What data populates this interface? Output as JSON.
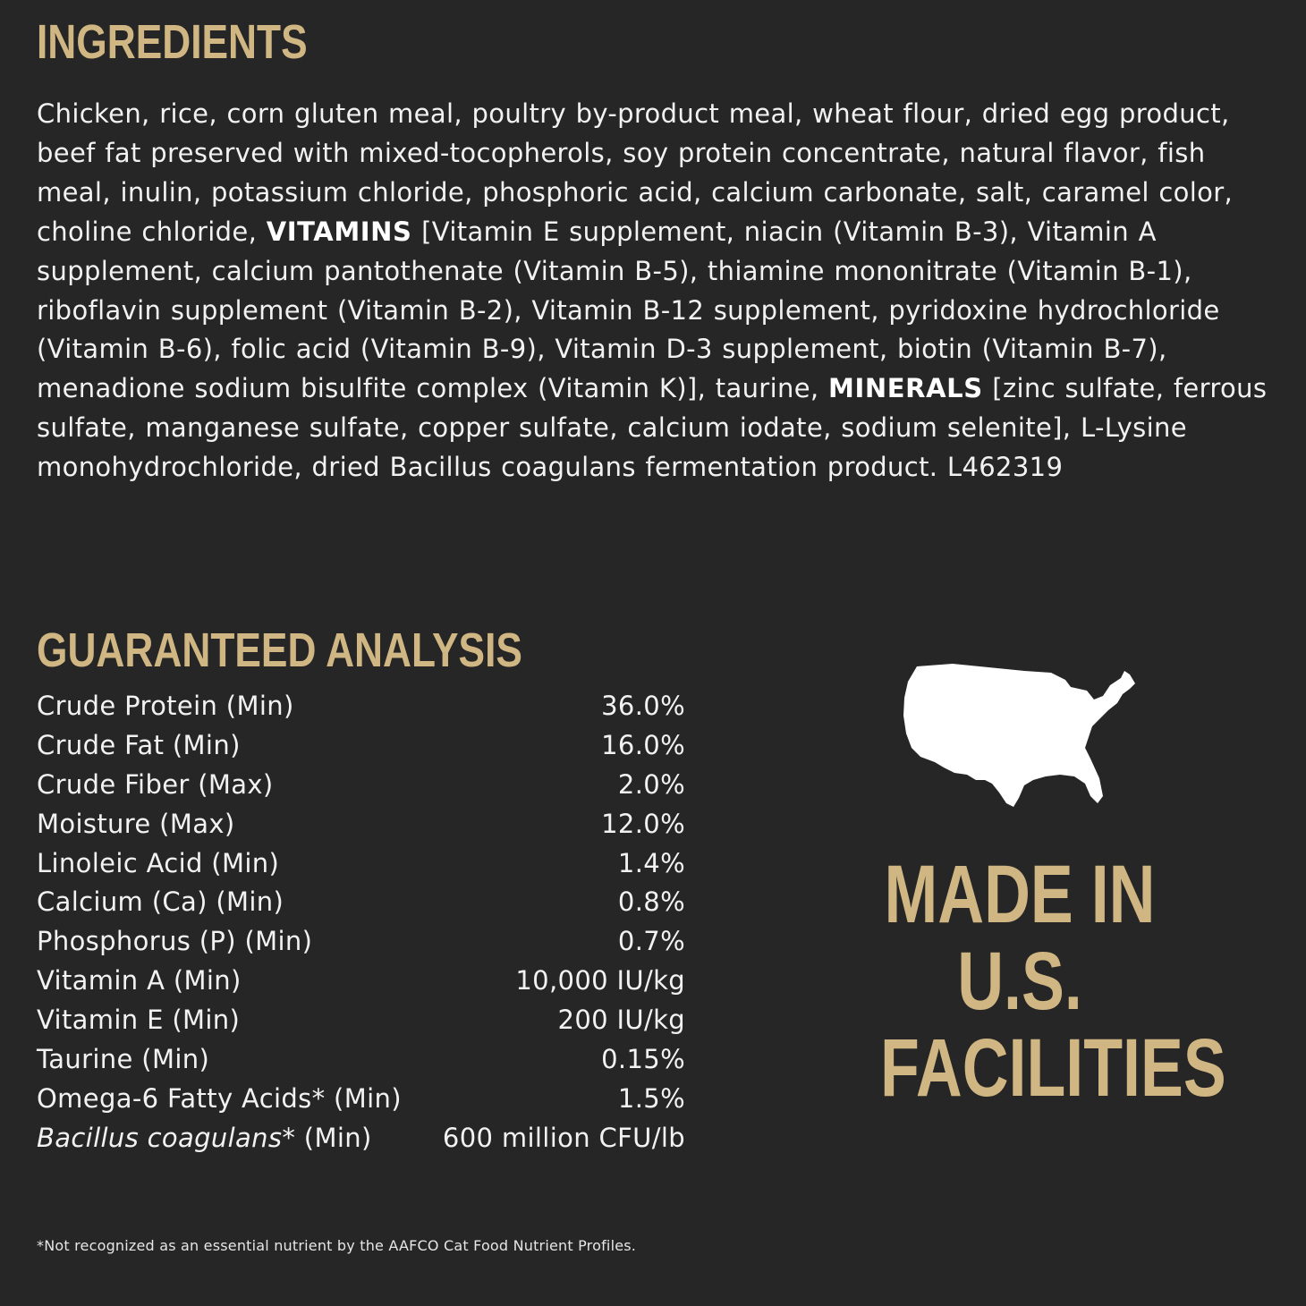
{
  "ingredients": {
    "title": "INGREDIENTS",
    "text_part1": "Chicken, rice, corn gluten meal, poultry by-product meal, wheat flour, dried egg product, beef fat preserved with mixed-tocopherols, soy protein concentrate, natural flavor, fish meal, inulin, potassium chloride, phosphoric acid, calcium carbonate, salt, caramel color, choline chloride, ",
    "vitamins_label": "VITAMINS",
    "text_part2": " [Vitamin E supplement, niacin (Vitamin B-3), Vitamin A supplement, calcium pantothenate (Vitamin B-5), thiamine mononitrate (Vitamin B-1), riboflavin supplement (Vitamin B-2), Vitamin B-12 supplement, pyridoxine hydrochloride (Vitamin B-6), folic acid (Vitamin B-9), Vitamin D-3 supplement, biotin (Vitamin B-7), menadione sodium bisulfite complex (Vitamin K)], taurine, ",
    "minerals_label": "MINERALS",
    "text_part3": " [zinc sulfate, ferrous sulfate, manganese sulfate, copper sulfate, calcium iodate, sodium selenite], L-Lysine monohydrochloride, dried Bacillus coagulans fermentation product. L462319"
  },
  "analysis": {
    "title": "GUARANTEED ANALYSIS",
    "rows": [
      {
        "label": "Crude Protein (Min)",
        "value": "36.0%"
      },
      {
        "label": "Crude Fat (Min)",
        "value": "16.0%"
      },
      {
        "label": "Crude Fiber (Max)",
        "value": "2.0%"
      },
      {
        "label": "Moisture (Max)",
        "value": "12.0%"
      },
      {
        "label": "Linoleic Acid (Min)",
        "value": "1.4%"
      },
      {
        "label": "Calcium (Ca) (Min)",
        "value": "0.8%"
      },
      {
        "label": "Phosphorus (P) (Min)",
        "value": "0.7%"
      },
      {
        "label": "Vitamin A (Min)",
        "value": "10,000 IU/kg"
      },
      {
        "label": "Vitamin E (Min)",
        "value": "200 IU/kg"
      },
      {
        "label": "Taurine (Min)",
        "value": "0.15%"
      },
      {
        "label": "Omega-6 Fatty Acids* (Min)",
        "value": "1.5%"
      }
    ],
    "last_row": {
      "label_italic": "Bacillus coagulans",
      "label_rest": "* (Min)",
      "value": "600 million CFU/lb"
    }
  },
  "footnote": "*Not recognized as an essential nutrient by the AAFCO Cat Food Nutrient Profiles.",
  "badge": {
    "icon": "usa-map-icon",
    "line1": "MADE IN",
    "line2": "U.S.",
    "line3": "FACILITIES"
  },
  "colors": {
    "background": "#262626",
    "accent_gold": "#cfb683",
    "text": "#f2f2f2"
  }
}
